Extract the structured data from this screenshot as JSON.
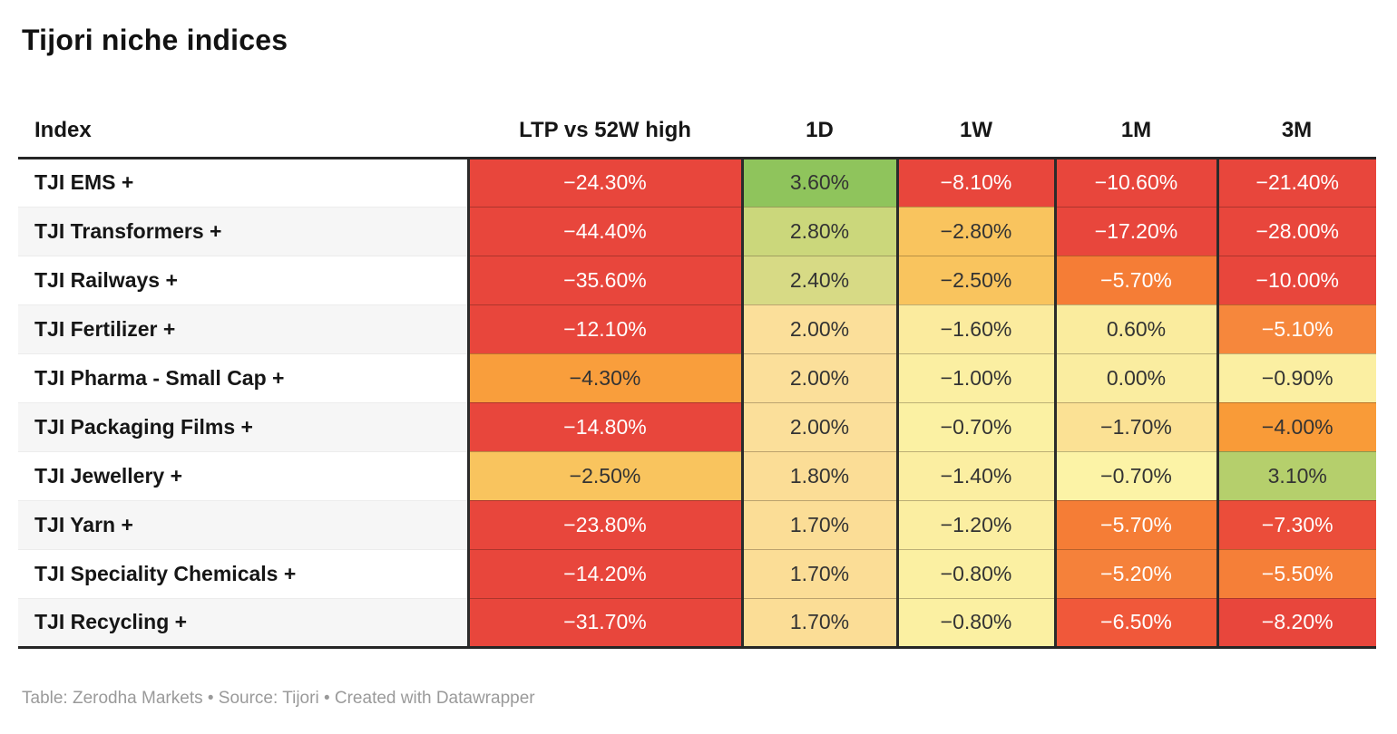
{
  "title": "Tijori niche indices",
  "footer": "Table: Zerodha Markets • Source: Tijori • Created with Datawrapper",
  "columns": [
    "Index",
    "LTP vs 52W high",
    "1D",
    "1W",
    "1M",
    "3M"
  ],
  "rows": [
    {
      "index": "TJI EMS +",
      "cells": [
        {
          "v": "−24.30%",
          "bg": "#e8463c",
          "fg": "#ffffff"
        },
        {
          "v": "3.60%",
          "bg": "#8fc45c",
          "fg": "#333333"
        },
        {
          "v": "−8.10%",
          "bg": "#e8463c",
          "fg": "#ffffff"
        },
        {
          "v": "−10.60%",
          "bg": "#e8463c",
          "fg": "#ffffff"
        },
        {
          "v": "−21.40%",
          "bg": "#e8463c",
          "fg": "#ffffff"
        }
      ]
    },
    {
      "index": "TJI Transformers +",
      "cells": [
        {
          "v": "−44.40%",
          "bg": "#e8463c",
          "fg": "#ffffff"
        },
        {
          "v": "2.80%",
          "bg": "#cbd77b",
          "fg": "#333333"
        },
        {
          "v": "−2.80%",
          "bg": "#f9c45e",
          "fg": "#333333"
        },
        {
          "v": "−17.20%",
          "bg": "#e8463c",
          "fg": "#ffffff"
        },
        {
          "v": "−28.00%",
          "bg": "#e8463c",
          "fg": "#ffffff"
        }
      ]
    },
    {
      "index": "TJI Railways +",
      "cells": [
        {
          "v": "−35.60%",
          "bg": "#e8463c",
          "fg": "#ffffff"
        },
        {
          "v": "2.40%",
          "bg": "#d7da85",
          "fg": "#333333"
        },
        {
          "v": "−2.50%",
          "bg": "#f9c45e",
          "fg": "#333333"
        },
        {
          "v": "−5.70%",
          "bg": "#f57d36",
          "fg": "#ffffff"
        },
        {
          "v": "−10.00%",
          "bg": "#e8463c",
          "fg": "#ffffff"
        }
      ]
    },
    {
      "index": "TJI Fertilizer +",
      "cells": [
        {
          "v": "−12.10%",
          "bg": "#e8463c",
          "fg": "#ffffff"
        },
        {
          "v": "2.00%",
          "bg": "#fbdf9a",
          "fg": "#333333"
        },
        {
          "v": "−1.60%",
          "bg": "#fbeb9e",
          "fg": "#333333"
        },
        {
          "v": "0.60%",
          "bg": "#faec9e",
          "fg": "#333333"
        },
        {
          "v": "−5.10%",
          "bg": "#f6873c",
          "fg": "#ffffff"
        }
      ]
    },
    {
      "index": "TJI Pharma - Small Cap +",
      "cells": [
        {
          "v": "−4.30%",
          "bg": "#f99e3c",
          "fg": "#333333"
        },
        {
          "v": "2.00%",
          "bg": "#fbdf9a",
          "fg": "#333333"
        },
        {
          "v": "−1.00%",
          "bg": "#fbefa2",
          "fg": "#333333"
        },
        {
          "v": "0.00%",
          "bg": "#faeda0",
          "fg": "#333333"
        },
        {
          "v": "−0.90%",
          "bg": "#fbefa2",
          "fg": "#333333"
        }
      ]
    },
    {
      "index": "TJI Packaging Films +",
      "cells": [
        {
          "v": "−14.80%",
          "bg": "#e8463c",
          "fg": "#ffffff"
        },
        {
          "v": "2.00%",
          "bg": "#fbdf9a",
          "fg": "#333333"
        },
        {
          "v": "−0.70%",
          "bg": "#fbf1a3",
          "fg": "#333333"
        },
        {
          "v": "−1.70%",
          "bg": "#fbe194",
          "fg": "#333333"
        },
        {
          "v": "−4.00%",
          "bg": "#f99b38",
          "fg": "#333333"
        }
      ]
    },
    {
      "index": "TJI Jewellery +",
      "cells": [
        {
          "v": "−2.50%",
          "bg": "#f9c45e",
          "fg": "#333333"
        },
        {
          "v": "1.80%",
          "bg": "#fbdd96",
          "fg": "#333333"
        },
        {
          "v": "−1.40%",
          "bg": "#fbeea1",
          "fg": "#333333"
        },
        {
          "v": "−0.70%",
          "bg": "#fcf3a6",
          "fg": "#333333"
        },
        {
          "v": "3.10%",
          "bg": "#b5cf6c",
          "fg": "#333333"
        }
      ]
    },
    {
      "index": "TJI Yarn +",
      "cells": [
        {
          "v": "−23.80%",
          "bg": "#e8463c",
          "fg": "#ffffff"
        },
        {
          "v": "1.70%",
          "bg": "#fbdd96",
          "fg": "#333333"
        },
        {
          "v": "−1.20%",
          "bg": "#fbeea1",
          "fg": "#333333"
        },
        {
          "v": "−5.70%",
          "bg": "#f57d36",
          "fg": "#ffffff"
        },
        {
          "v": "−7.30%",
          "bg": "#eb4d3a",
          "fg": "#ffffff"
        }
      ]
    },
    {
      "index": "TJI Speciality Chemicals +",
      "cells": [
        {
          "v": "−14.20%",
          "bg": "#e8463c",
          "fg": "#ffffff"
        },
        {
          "v": "1.70%",
          "bg": "#fbdd96",
          "fg": "#333333"
        },
        {
          "v": "−0.80%",
          "bg": "#fbf0a2",
          "fg": "#333333"
        },
        {
          "v": "−5.20%",
          "bg": "#f5813a",
          "fg": "#ffffff"
        },
        {
          "v": "−5.50%",
          "bg": "#f57f38",
          "fg": "#ffffff"
        }
      ]
    },
    {
      "index": "TJI Recycling +",
      "cells": [
        {
          "v": "−31.70%",
          "bg": "#e8463c",
          "fg": "#ffffff"
        },
        {
          "v": "1.70%",
          "bg": "#fbdd96",
          "fg": "#333333"
        },
        {
          "v": "−0.80%",
          "bg": "#fbf0a2",
          "fg": "#333333"
        },
        {
          "v": "−6.50%",
          "bg": "#f0583a",
          "fg": "#ffffff"
        },
        {
          "v": "−8.20%",
          "bg": "#e8463c",
          "fg": "#ffffff"
        }
      ]
    }
  ],
  "chart_data": {
    "type": "table",
    "title": "Tijori niche indices",
    "columns": [
      "Index",
      "LTP vs 52W high",
      "1D",
      "1W",
      "1M",
      "3M"
    ],
    "units": "percent",
    "heatmap": "diverging red-yellow-green, red = negative, green = positive",
    "rows": [
      [
        "TJI EMS +",
        -24.3,
        3.6,
        -8.1,
        -10.6,
        -21.4
      ],
      [
        "TJI Transformers +",
        -44.4,
        2.8,
        -2.8,
        -17.2,
        -28.0
      ],
      [
        "TJI Railways +",
        -35.6,
        2.4,
        -2.5,
        -5.7,
        -10.0
      ],
      [
        "TJI Fertilizer +",
        -12.1,
        2.0,
        -1.6,
        0.6,
        -5.1
      ],
      [
        "TJI Pharma - Small Cap +",
        -4.3,
        2.0,
        -1.0,
        0.0,
        -0.9
      ],
      [
        "TJI Packaging Films +",
        -14.8,
        2.0,
        -0.7,
        -1.7,
        -4.0
      ],
      [
        "TJI Jewellery +",
        -2.5,
        1.8,
        -1.4,
        -0.7,
        3.1
      ],
      [
        "TJI Yarn +",
        -23.8,
        1.7,
        -1.2,
        -5.7,
        -7.3
      ],
      [
        "TJI Speciality Chemicals +",
        -14.2,
        1.7,
        -0.8,
        -5.2,
        -5.5
      ],
      [
        "TJI Recycling +",
        -31.7,
        1.7,
        -0.8,
        -6.5,
        -8.2
      ]
    ],
    "source_line": "Table: Zerodha Markets • Source: Tijori • Created with Datawrapper"
  }
}
